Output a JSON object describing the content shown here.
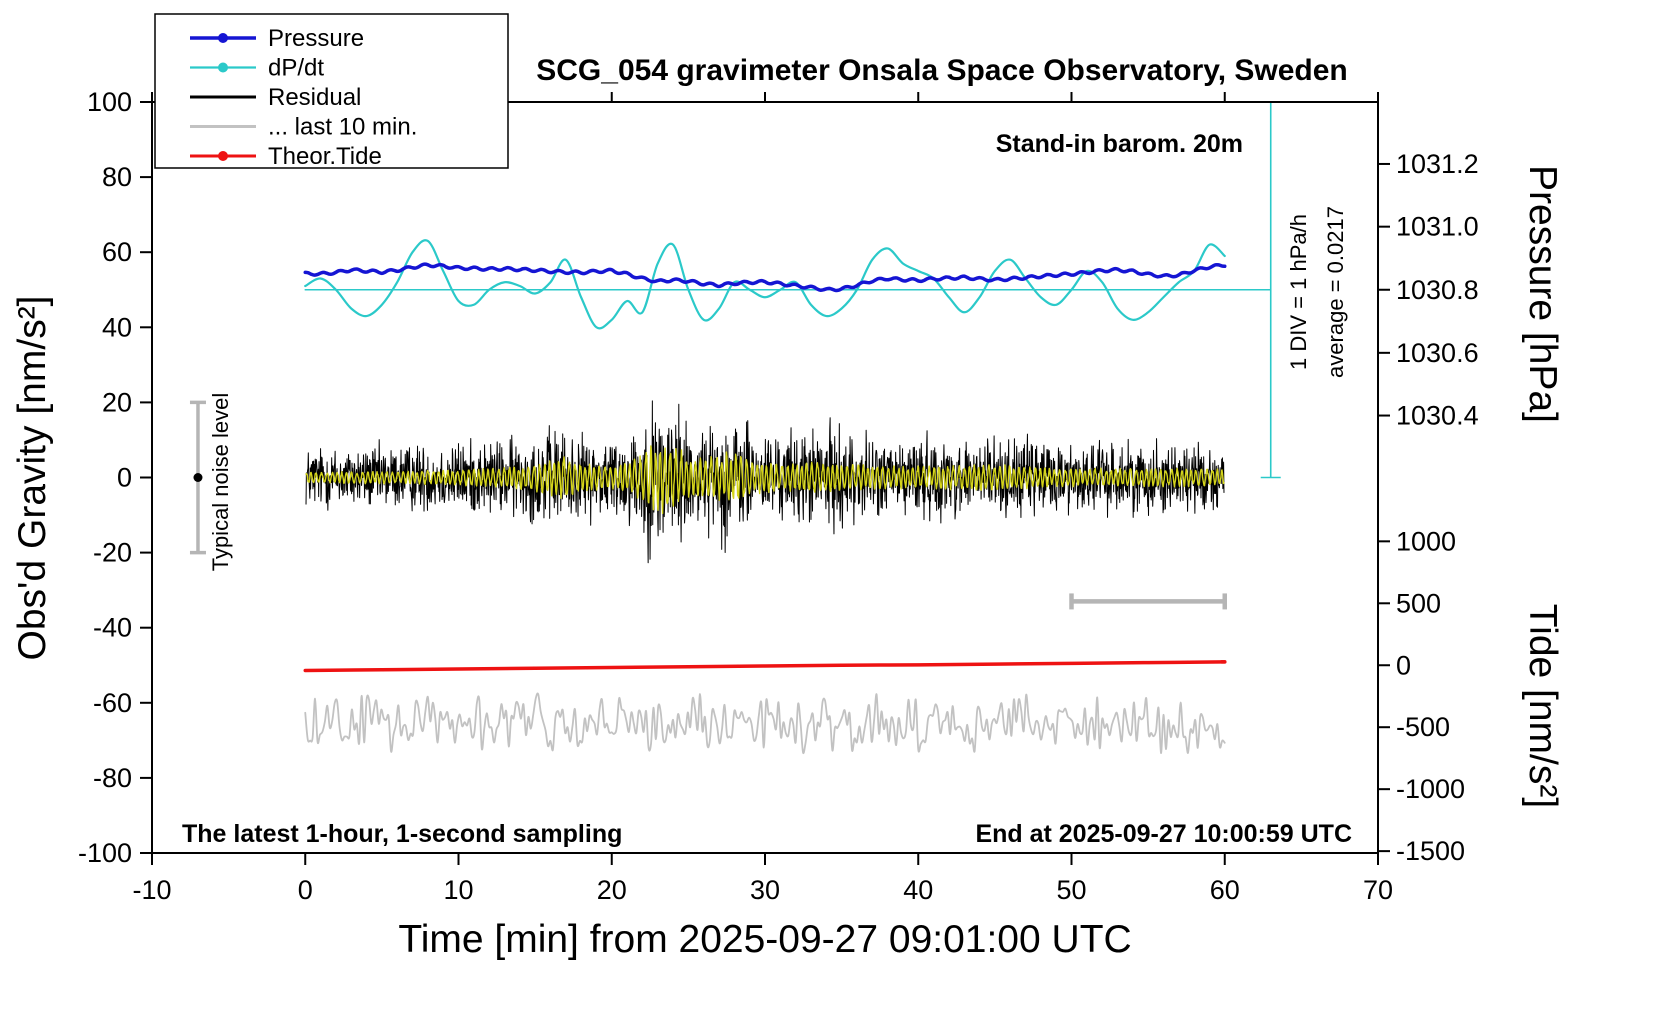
{
  "annotations": {
    "barometer": "Stand-in barom. 20m",
    "div_scale": "1 DIV = 1 hPa/h",
    "average": "average = 0.0217",
    "noise_level": "Typical noise level",
    "sampling": "The latest 1-hour, 1-second sampling",
    "end_time": "End at 2025-09-27 10:00:59 UTC"
  },
  "legend": {
    "items": [
      {
        "key": "pressure",
        "label": "Pressure",
        "color": "#1515d3",
        "width": 3.5,
        "dot": true
      },
      {
        "key": "dpdt",
        "label": "dP/dt",
        "color": "#2bc9c9",
        "width": 2.2,
        "dot": true
      },
      {
        "key": "residual",
        "label": "Residual",
        "color": "#000000",
        "width": 3,
        "dot": false
      },
      {
        "key": "last10",
        "label": "... last 10 min.",
        "color": "#c2c2c2",
        "width": 3,
        "dot": false
      },
      {
        "key": "theor-tide",
        "label": "Theor.Tide",
        "color": "#ee1212",
        "width": 3,
        "dot": true
      }
    ]
  },
  "chart_data": {
    "type": "line",
    "title": "SCG_054 gravimeter Onsala Space Observatory, Sweden",
    "xlabel": "Time [min] from 2025-09-27 09:01:00 UTC",
    "ylabel": "Obs'd Gravity [nm/s²]",
    "xlim": [
      -10,
      70
    ],
    "ylim": [
      -100,
      100
    ],
    "x_ticks": [
      -10,
      0,
      10,
      20,
      30,
      40,
      50,
      60,
      70
    ],
    "y_ticks": [
      -100,
      -80,
      -60,
      -40,
      -20,
      0,
      20,
      40,
      60,
      80,
      100
    ],
    "pressure_axis": {
      "label": "Pressure [hPa]",
      "ticks": [
        {
          "label": "1031.2",
          "y": 83.5
        },
        {
          "label": "1031.0",
          "y": 66.8
        },
        {
          "label": "1030.8",
          "y": 50.0
        },
        {
          "label": "1030.6",
          "y": 33.2
        },
        {
          "label": "1030.4",
          "y": 16.5
        }
      ]
    },
    "tide_axis": {
      "label": "Tide [nm/s²]",
      "ticks": [
        {
          "label": "1000",
          "y": -17.0
        },
        {
          "label": "500",
          "y": -33.5
        },
        {
          "label": "0",
          "y": -50.0
        },
        {
          "label": "-500",
          "y": -66.5
        },
        {
          "label": "-1000",
          "y": -83.0
        },
        {
          "label": "-1500",
          "y": -99.5
        }
      ]
    },
    "series": [
      {
        "key": "dpdt-zero",
        "name": "dP/dt zero line (1030.8 hPa)",
        "color": "#2bc9c9",
        "width": 1.5,
        "render": "straight",
        "points": [
          [
            0,
            50
          ],
          [
            63,
            50
          ]
        ]
      },
      {
        "key": "dpdt",
        "name": "dP/dt",
        "color": "#2bc9c9",
        "width": 2.2,
        "render": "smooth",
        "points": [
          [
            0,
            51
          ],
          [
            1,
            53
          ],
          [
            2,
            50
          ],
          [
            3,
            45
          ],
          [
            4,
            43
          ],
          [
            5,
            46
          ],
          [
            6,
            52
          ],
          [
            7,
            60
          ],
          [
            8,
            63
          ],
          [
            9,
            55
          ],
          [
            10,
            47
          ],
          [
            11,
            46
          ],
          [
            12,
            50
          ],
          [
            13,
            52
          ],
          [
            14,
            51
          ],
          [
            15,
            49
          ],
          [
            16,
            52
          ],
          [
            17,
            58
          ],
          [
            18,
            48
          ],
          [
            19,
            40
          ],
          [
            20,
            42
          ],
          [
            21,
            47
          ],
          [
            22,
            44
          ],
          [
            23,
            57
          ],
          [
            24,
            62
          ],
          [
            25,
            50
          ],
          [
            26,
            42
          ],
          [
            27,
            45
          ],
          [
            28,
            52
          ],
          [
            29,
            50
          ],
          [
            30,
            48
          ],
          [
            31,
            50
          ],
          [
            32,
            52
          ],
          [
            33,
            46
          ],
          [
            34,
            43
          ],
          [
            35,
            45
          ],
          [
            36,
            50
          ],
          [
            37,
            58
          ],
          [
            38,
            61
          ],
          [
            39,
            57
          ],
          [
            40,
            55
          ],
          [
            41,
            53
          ],
          [
            42,
            48
          ],
          [
            43,
            44
          ],
          [
            44,
            48
          ],
          [
            45,
            55
          ],
          [
            46,
            58
          ],
          [
            47,
            53
          ],
          [
            48,
            48
          ],
          [
            49,
            46
          ],
          [
            50,
            50
          ],
          [
            51,
            55
          ],
          [
            52,
            52
          ],
          [
            53,
            45
          ],
          [
            54,
            42
          ],
          [
            55,
            44
          ],
          [
            56,
            48
          ],
          [
            57,
            52
          ],
          [
            58,
            55
          ],
          [
            59,
            62
          ],
          [
            60,
            59
          ]
        ]
      },
      {
        "key": "pressure",
        "name": "Pressure",
        "color": "#1515d3",
        "width": 3.5,
        "render": "smooth-ripple",
        "ripple": {
          "amp": 0.35,
          "period": 1.1
        },
        "points": [
          [
            0,
            54.3
          ],
          [
            1,
            54.2
          ],
          [
            2,
            54.6
          ],
          [
            3,
            55.3
          ],
          [
            4,
            55.0
          ],
          [
            5,
            54.7
          ],
          [
            6,
            55.2
          ],
          [
            7,
            56.0
          ],
          [
            8,
            56.6
          ],
          [
            9,
            56.3
          ],
          [
            10,
            55.8
          ],
          [
            11,
            55.7
          ],
          [
            12,
            55.5
          ],
          [
            13,
            55.6
          ],
          [
            14,
            55.4
          ],
          [
            15,
            55.2
          ],
          [
            16,
            54.9
          ],
          [
            17,
            54.7
          ],
          [
            18,
            54.6
          ],
          [
            19,
            54.9
          ],
          [
            20,
            55.1
          ],
          [
            21,
            54.2
          ],
          [
            22,
            53.0
          ],
          [
            23,
            52.2
          ],
          [
            24,
            52.6
          ],
          [
            25,
            52.3
          ],
          [
            26,
            51.6
          ],
          [
            27,
            51.2
          ],
          [
            28,
            51.7
          ],
          [
            29,
            52.0
          ],
          [
            30,
            52.1
          ],
          [
            31,
            51.6
          ],
          [
            32,
            51.1
          ],
          [
            33,
            50.6
          ],
          [
            34,
            50.0
          ],
          [
            35,
            50.2
          ],
          [
            36,
            51.2
          ],
          [
            37,
            52.4
          ],
          [
            38,
            53.0
          ],
          [
            39,
            52.7
          ],
          [
            40,
            52.5
          ],
          [
            41,
            52.9
          ],
          [
            42,
            53.1
          ],
          [
            43,
            53.3
          ],
          [
            44,
            52.9
          ],
          [
            45,
            52.6
          ],
          [
            46,
            52.9
          ],
          [
            47,
            53.2
          ],
          [
            48,
            53.6
          ],
          [
            49,
            53.9
          ],
          [
            50,
            54.2
          ],
          [
            51,
            54.6
          ],
          [
            52,
            55.1
          ],
          [
            53,
            55.3
          ],
          [
            54,
            54.9
          ],
          [
            55,
            54.1
          ],
          [
            56,
            53.6
          ],
          [
            57,
            53.9
          ],
          [
            58,
            55.1
          ],
          [
            59,
            56.1
          ],
          [
            60,
            56.6
          ]
        ]
      },
      {
        "key": "last10",
        "name": "... last 10 min.",
        "color": "#c2c2c2",
        "width": 1.8,
        "render": "steps",
        "center": -65.5,
        "amp": 9,
        "step": 0.16,
        "seed": 909,
        "x_range": [
          0,
          60
        ]
      },
      {
        "key": "residual",
        "name": "Residual",
        "color": "#000000",
        "width": 1,
        "render": "noise",
        "seed": 12345,
        "points_per_min": 40,
        "x_range": [
          0.05,
          59.95
        ],
        "center": 0,
        "envelope": [
          [
            0,
            5.5
          ],
          [
            4,
            5.5
          ],
          [
            8,
            6
          ],
          [
            12,
            6.5
          ],
          [
            14,
            7
          ],
          [
            16,
            8.5
          ],
          [
            17,
            8.5
          ],
          [
            18,
            7
          ],
          [
            20,
            7.5
          ],
          [
            21.5,
            9
          ],
          [
            22.5,
            13
          ],
          [
            23.5,
            15
          ],
          [
            24.5,
            12
          ],
          [
            25.5,
            9
          ],
          [
            26.5,
            8.5
          ],
          [
            27.5,
            12
          ],
          [
            28.5,
            10
          ],
          [
            29.5,
            8
          ],
          [
            31,
            7.5
          ],
          [
            33,
            8.5
          ],
          [
            34.5,
            9
          ],
          [
            36,
            7.5
          ],
          [
            38,
            6.5
          ],
          [
            40,
            7.5
          ],
          [
            42,
            6.5
          ],
          [
            44,
            7.5
          ],
          [
            46,
            6.5
          ],
          [
            48,
            7
          ],
          [
            50,
            6
          ],
          [
            52,
            6.5
          ],
          [
            54,
            6
          ],
          [
            56,
            6.5
          ],
          [
            58,
            6
          ],
          [
            60,
            5.5
          ]
        ]
      },
      {
        "key": "residual-filtered",
        "name": "Residual (filtered)",
        "color": "#d4d41a",
        "width": 1.4,
        "render": "am",
        "seed": 55,
        "carrier_period": 0.33,
        "x_range": [
          0.05,
          59.95
        ],
        "envelope": [
          [
            0,
            1.2
          ],
          [
            8,
            1.5
          ],
          [
            12,
            2
          ],
          [
            14,
            2.5
          ],
          [
            15.5,
            3.5
          ],
          [
            17,
            5
          ],
          [
            18,
            3
          ],
          [
            20,
            2.5
          ],
          [
            21.5,
            4
          ],
          [
            22.5,
            7
          ],
          [
            23.5,
            8
          ],
          [
            24.5,
            6
          ],
          [
            25.5,
            4
          ],
          [
            27,
            5
          ],
          [
            28,
            6
          ],
          [
            29,
            4
          ],
          [
            31,
            3
          ],
          [
            33,
            3.5
          ],
          [
            35,
            3
          ],
          [
            38,
            2.5
          ],
          [
            41,
            2.5
          ],
          [
            44,
            3
          ],
          [
            47,
            2.5
          ],
          [
            50,
            2
          ],
          [
            54,
            2
          ],
          [
            57,
            2
          ],
          [
            60,
            1.8
          ]
        ]
      },
      {
        "key": "theor-tide",
        "name": "Theor.Tide",
        "color": "#ee1212",
        "width": 3.5,
        "render": "smooth",
        "points": [
          [
            0,
            -51.4
          ],
          [
            5,
            -51.2
          ],
          [
            10,
            -51.0
          ],
          [
            15,
            -50.8
          ],
          [
            20,
            -50.6
          ],
          [
            25,
            -50.4
          ],
          [
            30,
            -50.2
          ],
          [
            35,
            -50.0
          ],
          [
            40,
            -49.9
          ],
          [
            45,
            -49.7
          ],
          [
            50,
            -49.5
          ],
          [
            55,
            -49.3
          ],
          [
            60,
            -49.1
          ]
        ]
      },
      {
        "key": "theor-tide-end",
        "name": "",
        "color": "#ee1212",
        "width": 3.5,
        "render": "straight",
        "points": [
          [
            59.8,
            -49.1
          ],
          [
            60,
            -49.1
          ]
        ]
      }
    ],
    "extras": {
      "div_bar": {
        "x": 63,
        "y_top": 100,
        "y_bottom": 0,
        "color": "#2bc9c9"
      },
      "ten_min_bar": {
        "x1": 50,
        "x2": 60,
        "y": -33,
        "color": "#b5b5b5"
      },
      "noise_bar": {
        "x": -7,
        "y1": -20,
        "y2": 20,
        "dot_y": 0,
        "color": "#b5b5b5"
      }
    }
  }
}
